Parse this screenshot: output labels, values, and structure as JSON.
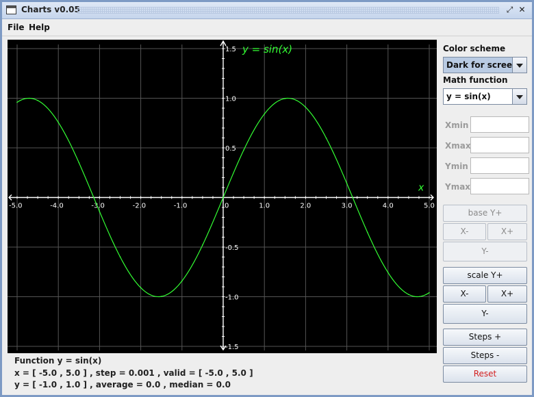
{
  "window": {
    "title": "Charts v0.05"
  },
  "menubar": {
    "file": "File",
    "help": "Help"
  },
  "chart": {
    "title": "y = sin(x)",
    "x_axis_label": "x",
    "x_ticks": [
      "-5.0",
      "-4.0",
      "-3.0",
      "-2.0",
      "-1.0",
      "0",
      "1.0",
      "2.0",
      "3.0",
      "4.0",
      "5.0"
    ],
    "y_ticks": [
      "1.5",
      "1.0",
      "0.5",
      "-0.5",
      "-1.0",
      "-1.5"
    ],
    "background_color": "#000000",
    "curve_color": "#33ff33",
    "grid_color": "#555555"
  },
  "chart_data": {
    "type": "line",
    "title": "y = sin(x)",
    "xlabel": "x",
    "ylabel": "",
    "xlim": [
      -5.0,
      5.0
    ],
    "ylim": [
      -1.5,
      1.5
    ],
    "grid": true,
    "x": [
      -5.0,
      -4.5,
      -4.0,
      -3.5,
      -3.0,
      -2.5,
      -2.0,
      -1.5,
      -1.0,
      -0.5,
      0.0,
      0.5,
      1.0,
      1.5,
      2.0,
      2.5,
      3.0,
      3.5,
      4.0,
      4.5,
      5.0
    ],
    "series": [
      {
        "values": [
          0.959,
          0.978,
          0.757,
          0.351,
          -0.141,
          -0.598,
          -0.909,
          -0.997,
          -0.841,
          -0.479,
          0.0,
          0.479,
          0.841,
          0.997,
          0.909,
          0.598,
          0.141,
          -0.351,
          -0.757,
          -0.978,
          -0.959
        ]
      }
    ]
  },
  "info": {
    "function_line": "Function  y = sin(x)",
    "x_line": "x = [ -5.0  ,  5.0 ] , step = 0.001 , valid = [ -5.0 , 5.0 ]",
    "y_line": "y = [ -1.0  ,  1.0 ] , average = 0.0 , median = 0.0"
  },
  "sidebar": {
    "color_scheme_label": "Color scheme",
    "color_scheme_value": "Dark for screen",
    "math_function_label": "Math function",
    "math_function_value": "y = sin(x)",
    "xmin_label": "Xmin",
    "xmax_label": "Xmax",
    "ymin_label": "Ymin",
    "ymax_label": "Ymax",
    "xmin_value": "",
    "xmax_value": "",
    "ymin_value": "",
    "ymax_value": "",
    "base": {
      "y_plus": "base Y+",
      "x_minus": "X-",
      "x_plus": "X+",
      "y_minus": "Y-"
    },
    "scale": {
      "y_plus": "scale Y+",
      "x_minus": "X-",
      "x_plus": "X+",
      "y_minus": "Y-"
    },
    "steps_plus": "Steps +",
    "steps_minus": "Steps -",
    "reset": "Reset"
  }
}
